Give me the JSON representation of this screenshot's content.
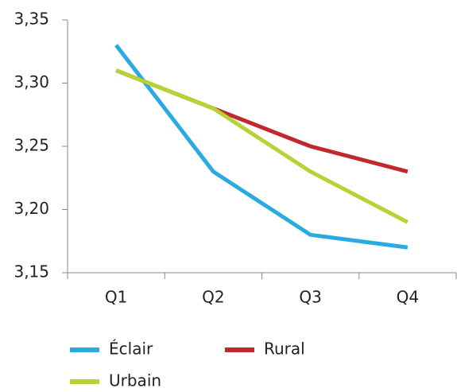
{
  "chart_data": {
    "type": "line",
    "categories": [
      "Q1",
      "Q2",
      "Q3",
      "Q4"
    ],
    "series": [
      {
        "name": "Éclair",
        "color": "#29abe2",
        "values": [
          3.33,
          3.23,
          3.18,
          3.17
        ]
      },
      {
        "name": "Rural",
        "color": "#c1272d",
        "values": [
          3.31,
          3.28,
          3.25,
          3.23
        ]
      },
      {
        "name": "Urbain",
        "color": "#b5d334",
        "values": [
          3.31,
          3.28,
          3.23,
          3.19
        ]
      }
    ],
    "ylim": [
      3.15,
      3.35
    ],
    "yticks": [
      {
        "value": 3.15,
        "label": "3,15"
      },
      {
        "value": 3.2,
        "label": "3,20"
      },
      {
        "value": 3.25,
        "label": "3,25"
      },
      {
        "value": 3.3,
        "label": "3,30"
      },
      {
        "value": 3.35,
        "label": "3,35"
      }
    ],
    "grid": false
  }
}
